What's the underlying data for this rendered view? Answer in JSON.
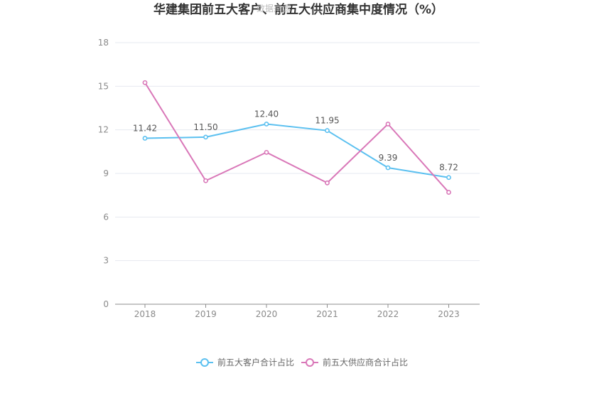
{
  "chart_data": {
    "type": "line",
    "title": "华建集团前五大客户、前五大供应商集中度情况（%）",
    "watermark": "数据来源",
    "categories": [
      "2018",
      "2019",
      "2020",
      "2021",
      "2022",
      "2023"
    ],
    "ylim": [
      0,
      18
    ],
    "yticks": [
      0,
      3,
      6,
      9,
      12,
      15,
      18
    ],
    "grid": true,
    "legend_position": "bottom-center",
    "series": [
      {
        "name": "前五大客户合计占比",
        "color": "#5bc0f0",
        "values": [
          11.42,
          11.5,
          12.4,
          11.95,
          9.39,
          8.72
        ],
        "labels": [
          "11.42",
          "11.50",
          "12.40",
          "11.95",
          "9.39",
          "8.72"
        ]
      },
      {
        "name": "前五大供应商合计占比",
        "color": "#d977b8",
        "values": [
          15.25,
          8.5,
          10.45,
          8.35,
          12.4,
          7.7
        ]
      }
    ]
  }
}
